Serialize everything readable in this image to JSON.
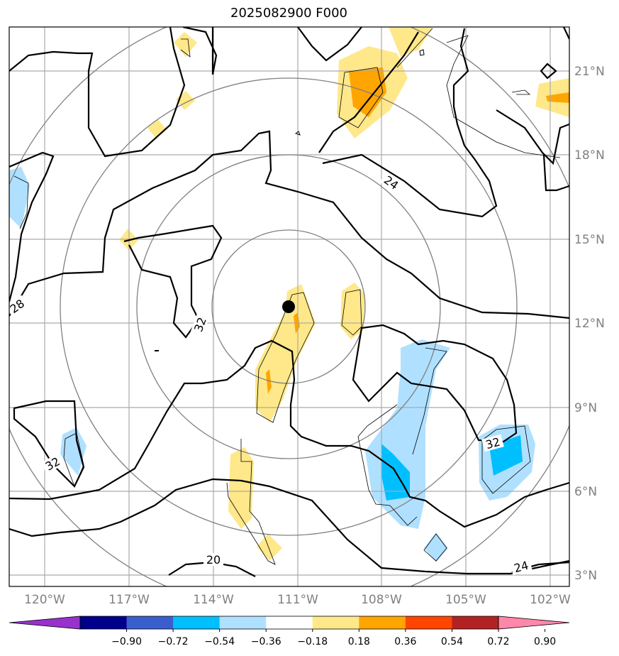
{
  "title": "2025082900 F000",
  "map": {
    "lon_labels": [
      "120°W",
      "117°W",
      "114°W",
      "111°W",
      "108°W",
      "105°W",
      "102°W"
    ],
    "lat_labels": [
      "21°N",
      "18°N",
      "15°N",
      "12°N",
      "9°N",
      "6°N",
      "3°N"
    ],
    "contour_labels": [
      "24",
      "28",
      "32",
      "32",
      "32",
      "20",
      "24"
    ],
    "center_marker": "storm-center-dot"
  },
  "colorbar": {
    "ticks": [
      "−0.90",
      "−0.72",
      "−0.54",
      "−0.36",
      "−0.18",
      "0.18",
      "0.36",
      "0.54",
      "0.72",
      "0.90"
    ],
    "colors": [
      "#9932CC",
      "#00008B",
      "#3A5FCD",
      "#00BFFF",
      "#B0E0FF",
      "#FFFFFF",
      "#FFE88A",
      "#FFA500",
      "#FF4500",
      "#B22222",
      "#FF88AA"
    ]
  }
}
